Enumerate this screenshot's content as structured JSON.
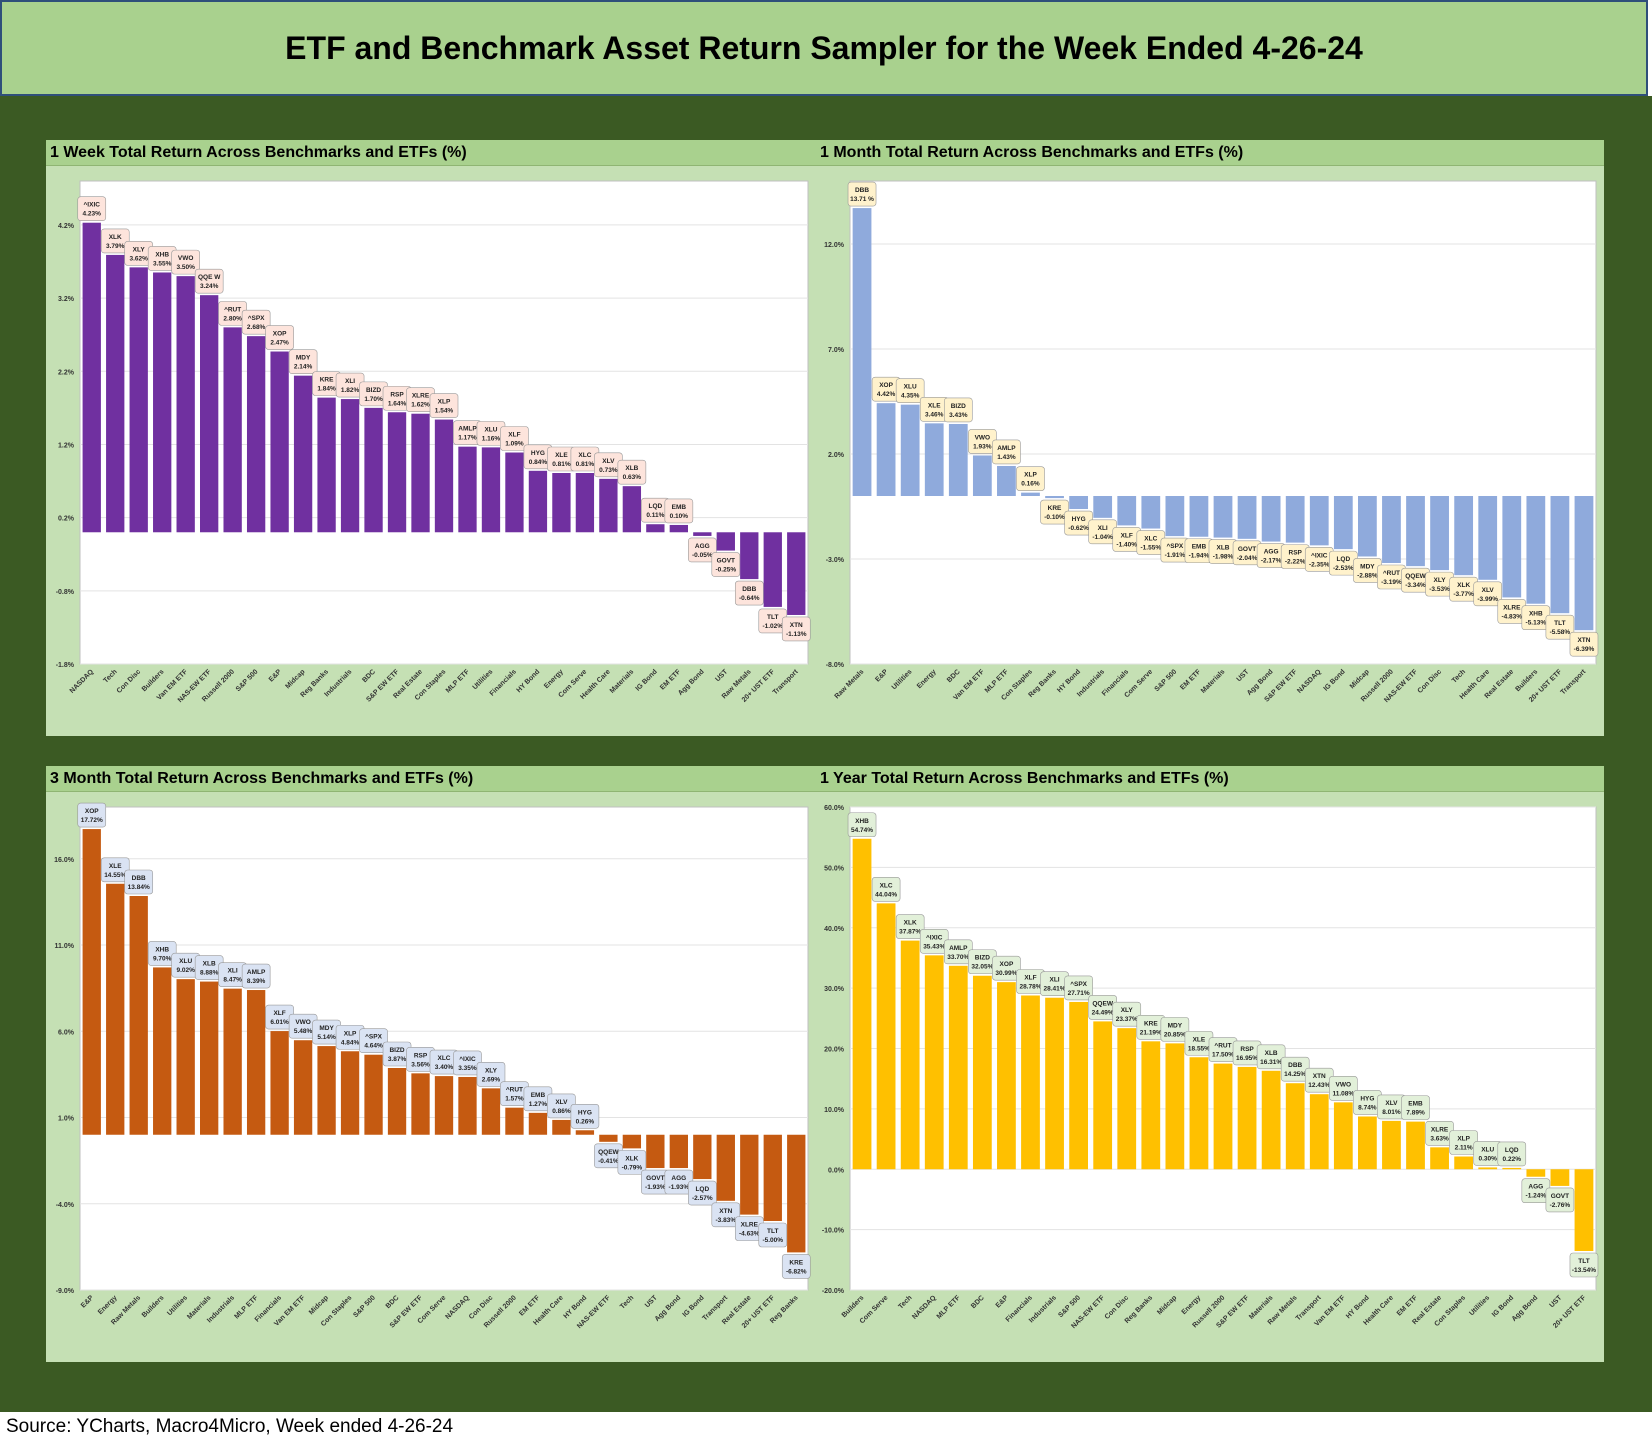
{
  "page_title": "ETF and Benchmark Asset Return Sampler for the Week Ended 4-26-24",
  "source_note": "Source: YCharts, Macro4Micro, Week ended 4-26-24",
  "chart_data": [
    {
      "type": "bar",
      "title": "1 Week Total Return Across Benchmarks and ETFs (%)",
      "color": "#7030a0",
      "label_fill": "#fde4dc",
      "ylim": [
        -1.8,
        4.8
      ],
      "yticks": [
        "4.2%",
        "3.2%",
        "2.2%",
        "1.2%",
        "0.2%",
        "-0.8%",
        "-1.8%"
      ],
      "ytick_values": [
        4.2,
        3.2,
        2.2,
        1.2,
        0.2,
        -0.8,
        -1.8
      ],
      "categories": [
        "NASDAQ",
        "Tech",
        "Con Disc",
        "Builders",
        "Van EM ETF",
        "NAS-EW ETF",
        "Russell 2000",
        "S&P 500",
        "E&P",
        "Midcap",
        "Reg Banks",
        "Industrials",
        "BDC",
        "S&P EW ETF",
        "Real Estate",
        "Con Staples",
        "MLP ETF",
        "Utilities",
        "Financials",
        "HY Bond",
        "Energy",
        "Com Serve",
        "Health Care",
        "Materials",
        "IG Bond",
        "EM ETF",
        "Agg Bond",
        "UST",
        "Raw Metals",
        "20+ UST ETF",
        "Transport"
      ],
      "tickers": [
        "^IXIC",
        "XLK",
        "XLY",
        "XHB",
        "VWO",
        "QQE W",
        "^RUT",
        "^SPX",
        "XOP",
        "MDY",
        "KRE",
        "XLI",
        "BIZD",
        "RSP",
        "XLRE",
        "XLP",
        "AMLP",
        "XLU",
        "XLF",
        "HYG",
        "XLE",
        "XLC",
        "XLV",
        "XLB",
        "LQD",
        "EMB",
        "AGG",
        "GOVT",
        "DBB",
        "TLT",
        "XTN"
      ],
      "labels": [
        "4.23%",
        "3.79%",
        "3.62%",
        "3.55%",
        "3.50%",
        "3.24%",
        "2.80%",
        "2.68%",
        "2.47%",
        "2.14%",
        "1.84%",
        "1.82%",
        "1.70%",
        "1.64%",
        "1.62%",
        "1.54%",
        "1.17%",
        "1.16%",
        "1.09%",
        "0.84%",
        "0.81%",
        "0.81%",
        "0.73%",
        "0.63%",
        "0.11%",
        "0.10%",
        "-0.05%",
        "-0.25%",
        "-0.64%",
        "-1.02%",
        "-1.13%"
      ],
      "values": [
        4.23,
        3.79,
        3.62,
        3.55,
        3.5,
        3.24,
        2.8,
        2.68,
        2.47,
        2.14,
        1.84,
        1.82,
        1.7,
        1.64,
        1.62,
        1.54,
        1.17,
        1.16,
        1.09,
        0.84,
        0.81,
        0.81,
        0.73,
        0.63,
        0.11,
        0.1,
        -0.05,
        -0.25,
        -0.64,
        -1.02,
        -1.13
      ]
    },
    {
      "type": "bar",
      "title": "1 Month Total Return Across Benchmarks and ETFs (%)",
      "color": "#8faadc",
      "label_fill": "#fff2cc",
      "ylim": [
        -8.0,
        15.0
      ],
      "yticks": [
        "12.0%",
        "7.0%",
        "2.0%",
        "-3.0%",
        "-8.0%"
      ],
      "ytick_values": [
        12.0,
        7.0,
        2.0,
        -3.0,
        -8.0
      ],
      "categories": [
        "Raw Metals",
        "E&P",
        "Utilities",
        "Energy",
        "BDC",
        "Van EM ETF",
        "MLP ETF",
        "Con Staples",
        "Reg Banks",
        "HY Bond",
        "Industrials",
        "Financials",
        "Com Serve",
        "S&P 500",
        "EM ETF",
        "Materials",
        "UST",
        "Agg Bond",
        "S&P EW ETF",
        "NASDAQ",
        "IG Bond",
        "Midcap",
        "Russell 2000",
        "NAS-EW ETF",
        "Con Disc",
        "Tech",
        "Health Care",
        "Real Estate",
        "Builders",
        "20+ UST ETF",
        "Transport"
      ],
      "tickers": [
        "DBB",
        "XOP",
        "XLU",
        "XLE",
        "BIZD",
        "VWO",
        "AMLP",
        "XLP",
        "KRE",
        "HYG",
        "XLI",
        "XLF",
        "XLC",
        "^SPX",
        "EMB",
        "XLB",
        "GOVT",
        "AGG",
        "RSP",
        "^IXIC",
        "LQD",
        "MDY",
        "^RUT",
        "QQEW",
        "XLY",
        "XLK",
        "XLV",
        "XLRE",
        "XHB",
        "TLT",
        "XTN"
      ],
      "labels": [
        "13.71 %",
        "4.42%",
        "4.35%",
        "3.46%",
        "3.43%",
        "1.93%",
        "1.43%",
        "0.16%",
        "-0.10%",
        "-0.62%",
        "-1.04%",
        "-1.40%",
        "-1.55%",
        "-1.91%",
        "-1.94%",
        "-1.98%",
        "-2.04%",
        "-2.17%",
        "-2.22%",
        "-2.35%",
        "-2.53%",
        "-2.88%",
        "-3.19%",
        "-3.34%",
        "-3.53%",
        "-3.77%",
        "-3.99%",
        "-4.83%",
        "-5.13%",
        "-5.58%",
        "-6.39%"
      ],
      "values": [
        13.71,
        4.42,
        4.35,
        3.46,
        3.43,
        1.93,
        1.43,
        0.16,
        -0.1,
        -0.62,
        -1.04,
        -1.4,
        -1.55,
        -1.91,
        -1.94,
        -1.98,
        -2.04,
        -2.17,
        -2.22,
        -2.35,
        -2.53,
        -2.88,
        -3.19,
        -3.34,
        -3.53,
        -3.77,
        -3.99,
        -4.83,
        -5.13,
        -5.58,
        -6.39
      ]
    },
    {
      "type": "bar",
      "title": "3 Month Total Return Across Benchmarks and ETFs (%)",
      "color": "#c55a11",
      "label_fill": "#dae3f3",
      "ylim": [
        -9.0,
        19.0
      ],
      "yticks": [
        "16.0%",
        "11.0%",
        "6.0%",
        "1.0%",
        "-4.0%",
        "-9.0%"
      ],
      "ytick_values": [
        16.0,
        11.0,
        6.0,
        1.0,
        -4.0,
        -9.0
      ],
      "categories": [
        "E&P",
        "Energy",
        "Raw Metals",
        "Builders",
        "Utilities",
        "Materials",
        "Industrials",
        "MLP ETF",
        "Financials",
        "Van EM ETF",
        "Midcap",
        "Con Staples",
        "S&P 500",
        "BDC",
        "S&P EW ETF",
        "Com Serve",
        "NASDAQ",
        "Con Disc",
        "Russell 2000",
        "EM ETF",
        "Health Care",
        "HY Bond",
        "NAS-EW ETF",
        "Tech",
        "UST",
        "Agg Bond",
        "IG Bond",
        "Transport",
        "Real Estate",
        "20+ UST ETF",
        "Reg Banks"
      ],
      "tickers": [
        "XOP",
        "XLE",
        "DBB",
        "XHB",
        "XLU",
        "XLB",
        "XLI",
        "AMLP",
        "XLF",
        "VWO",
        "MDY",
        "XLP",
        "^SPX",
        "BIZD",
        "RSP",
        "XLC",
        "^IXIC",
        "XLY",
        "^RUT",
        "EMB",
        "XLV",
        "HYG",
        "QQEW",
        "XLK",
        "GOVT",
        "AGG",
        "LQD",
        "XTN",
        "XLRE",
        "TLT",
        "KRE"
      ],
      "labels": [
        "17.72%",
        "14.55%",
        "13.84%",
        "9.70%",
        "9.02%",
        "8.88%",
        "8.47%",
        "8.39%",
        "6.01%",
        "5.48%",
        "5.14%",
        "4.84%",
        "4.64%",
        "3.87%",
        "3.56%",
        "3.40%",
        "3.35%",
        "2.69%",
        "1.57%",
        "1.27%",
        "0.86%",
        "0.26%",
        "-0.41%",
        "-0.79%",
        "-1.93%",
        "-1.93%",
        "-2.57%",
        "-3.83%",
        "-4.63%",
        "-5.00%",
        "-6.82%"
      ],
      "values": [
        17.72,
        14.55,
        13.84,
        9.7,
        9.02,
        8.88,
        8.47,
        8.39,
        6.01,
        5.48,
        5.14,
        4.84,
        4.64,
        3.87,
        3.56,
        3.4,
        3.35,
        2.69,
        1.57,
        1.27,
        0.86,
        0.26,
        -0.41,
        -0.79,
        -1.93,
        -1.93,
        -2.57,
        -3.83,
        -4.63,
        -5.0,
        -6.82
      ]
    },
    {
      "type": "bar",
      "title": "1 Year Total Return Across Benchmarks and ETFs (%)",
      "color": "#ffc000",
      "label_fill": "#e2f0d9",
      "ylim": [
        -20.0,
        60.0
      ],
      "yticks": [
        "60.0%",
        "50.0%",
        "40.0%",
        "30.0%",
        "20.0%",
        "10.0%",
        "0.0%",
        "-10.0%",
        "-20.0%"
      ],
      "ytick_values": [
        60.0,
        50.0,
        40.0,
        30.0,
        20.0,
        10.0,
        0.0,
        -10.0,
        -20.0
      ],
      "categories": [
        "Builders",
        "Com Serve",
        "Tech",
        "NASDAQ",
        "MLP ETF",
        "BDC",
        "E&P",
        "Financials",
        "Industrials",
        "S&P 500",
        "NAS-EW ETF",
        "Con Disc",
        "Reg Banks",
        "Midcap",
        "Energy",
        "Russell 2000",
        "S&P EW ETF",
        "Materials",
        "Raw Metals",
        "Transport",
        "Van EM ETF",
        "HY Bond",
        "Health Care",
        "EM ETF",
        "Real Estate",
        "Con Staples",
        "Utilities",
        "IG Bond",
        "Agg Bond",
        "UST",
        "20+ UST ETF"
      ],
      "tickers": [
        "XHB",
        "XLC",
        "XLK",
        "^IXIC",
        "AMLP",
        "BIZD",
        "XOP",
        "XLF",
        "XLI",
        "^SPX",
        "QQEW",
        "XLY",
        "KRE",
        "MDY",
        "XLE",
        "^RUT",
        "RSP",
        "XLB",
        "DBB",
        "XTN",
        "VWO",
        "HYG",
        "XLV",
        "EMB",
        "XLRE",
        "XLP",
        "XLU",
        "LQD",
        "AGG",
        "GOVT",
        "TLT"
      ],
      "labels": [
        "54.74%",
        "44.04%",
        "37.87%",
        "35.43%",
        "33.70%",
        "32.05%",
        "30.99%",
        "28.78%",
        "28.41%",
        "27.71%",
        "24.49%",
        "23.37%",
        "21.19%",
        "20.85%",
        "18.55%",
        "17.50%",
        "16.95%",
        "16.31%",
        "14.25%",
        "12.43%",
        "11.08%",
        "8.74%",
        "8.01%",
        "7.89%",
        "3.63%",
        "2.11%",
        "0.30%",
        "0.22%",
        "-1.24%",
        "-2.76%",
        "-13.54%"
      ],
      "values": [
        54.74,
        44.04,
        37.87,
        35.43,
        33.7,
        32.05,
        30.99,
        28.78,
        28.41,
        27.71,
        24.49,
        23.37,
        21.19,
        20.85,
        18.55,
        17.5,
        16.95,
        16.31,
        14.25,
        12.43,
        11.08,
        8.74,
        8.01,
        7.89,
        3.63,
        2.11,
        0.3,
        0.22,
        -1.24,
        -2.76,
        -13.54
      ]
    }
  ]
}
